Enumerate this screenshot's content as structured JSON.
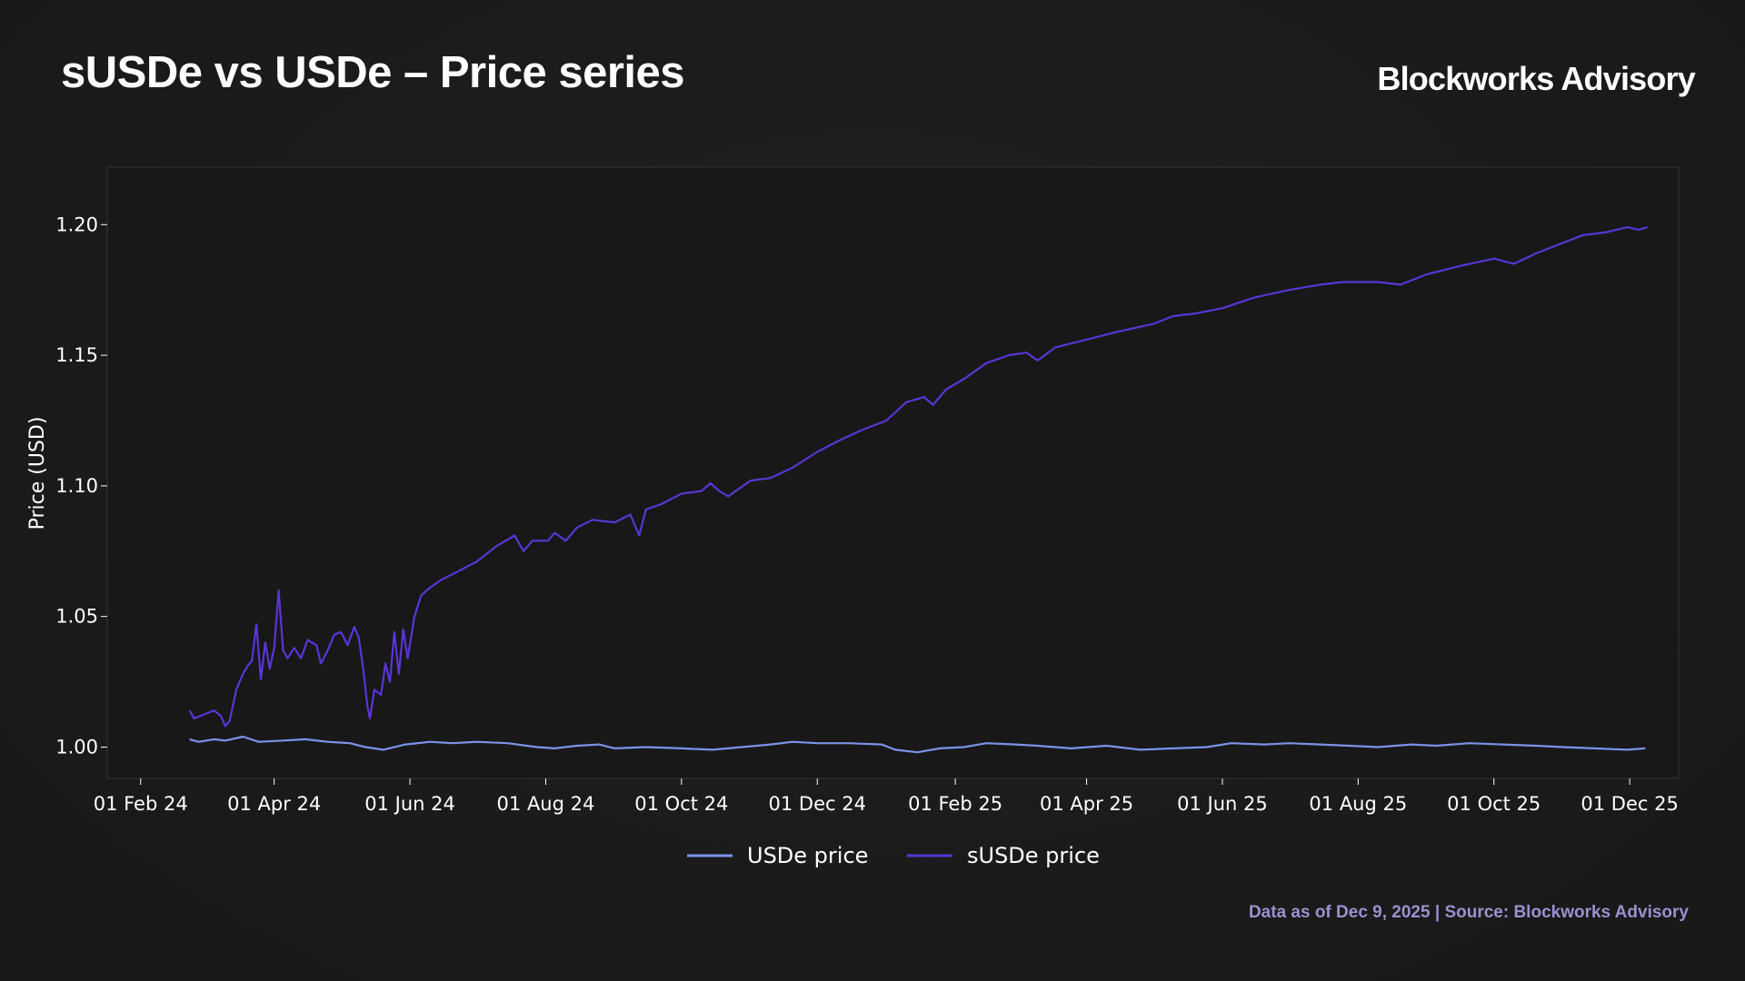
{
  "header": {
    "title": "sUSDe vs USDe – Price series",
    "brand": "Blockworks Advisory"
  },
  "footer": {
    "source": "Data as of Dec 9, 2025 | Source: Blockworks Advisory"
  },
  "chart_data": {
    "type": "line",
    "title": "sUSDe vs USDe – Price series",
    "xlabel": "",
    "ylabel": "Price (USD)",
    "x_range": [
      "2024-01-17",
      "2025-12-23"
    ],
    "ylim": [
      0.988,
      1.222
    ],
    "x_ticks": [
      "2024-02-01",
      "2024-04-01",
      "2024-06-01",
      "2024-08-01",
      "2024-10-01",
      "2024-12-01",
      "2025-02-01",
      "2025-04-01",
      "2025-06-01",
      "2025-08-01",
      "2025-10-01",
      "2025-12-01"
    ],
    "x_tick_labels": [
      "01 Feb 24",
      "01 Apr 24",
      "01 Jun 24",
      "01 Aug 24",
      "01 Oct 24",
      "01 Dec 24",
      "01 Feb 25",
      "01 Apr 25",
      "01 Jun 25",
      "01 Aug 25",
      "01 Oct 25",
      "01 Dec 25"
    ],
    "y_ticks": [
      1.0,
      1.05,
      1.1,
      1.15,
      1.2
    ],
    "y_tick_labels": [
      "1.00",
      "1.05",
      "1.10",
      "1.15",
      "1.20"
    ],
    "grid": false,
    "legend_position": "bottom-center",
    "series": [
      {
        "name": "USDe price",
        "color": "#7b93e8",
        "points": [
          [
            "2024-02-23",
            1.003
          ],
          [
            "2024-02-27",
            1.002
          ],
          [
            "2024-03-05",
            1.003
          ],
          [
            "2024-03-10",
            1.0025
          ],
          [
            "2024-03-18",
            1.004
          ],
          [
            "2024-03-25",
            1.002
          ],
          [
            "2024-04-05",
            1.0025
          ],
          [
            "2024-04-15",
            1.003
          ],
          [
            "2024-04-25",
            1.002
          ],
          [
            "2024-05-05",
            1.0015
          ],
          [
            "2024-05-12",
            1.0
          ],
          [
            "2024-05-20",
            0.999
          ],
          [
            "2024-05-30",
            1.001
          ],
          [
            "2024-06-10",
            1.002
          ],
          [
            "2024-06-20",
            1.0015
          ],
          [
            "2024-07-01",
            1.002
          ],
          [
            "2024-07-15",
            1.0015
          ],
          [
            "2024-07-28",
            1.0
          ],
          [
            "2024-08-05",
            0.9995
          ],
          [
            "2024-08-15",
            1.0005
          ],
          [
            "2024-08-25",
            1.001
          ],
          [
            "2024-09-01",
            0.9995
          ],
          [
            "2024-09-15",
            1.0
          ],
          [
            "2024-10-01",
            0.9995
          ],
          [
            "2024-10-15",
            0.999
          ],
          [
            "2024-10-28",
            1.0
          ],
          [
            "2024-11-10",
            1.001
          ],
          [
            "2024-11-20",
            1.002
          ],
          [
            "2024-12-01",
            1.0015
          ],
          [
            "2024-12-15",
            1.0015
          ],
          [
            "2024-12-30",
            1.001
          ],
          [
            "2025-01-05",
            0.999
          ],
          [
            "2025-01-15",
            0.998
          ],
          [
            "2025-01-25",
            0.9995
          ],
          [
            "2025-02-05",
            1.0
          ],
          [
            "2025-02-15",
            1.0015
          ],
          [
            "2025-02-28",
            1.001
          ],
          [
            "2025-03-10",
            1.0005
          ],
          [
            "2025-03-25",
            0.9995
          ],
          [
            "2025-04-10",
            1.0005
          ],
          [
            "2025-04-25",
            0.999
          ],
          [
            "2025-05-10",
            0.9995
          ],
          [
            "2025-05-25",
            1.0
          ],
          [
            "2025-06-05",
            1.0015
          ],
          [
            "2025-06-20",
            1.001
          ],
          [
            "2025-07-01",
            1.0015
          ],
          [
            "2025-07-15",
            1.001
          ],
          [
            "2025-07-28",
            1.0005
          ],
          [
            "2025-08-10",
            1.0
          ],
          [
            "2025-08-25",
            1.001
          ],
          [
            "2025-09-05",
            1.0005
          ],
          [
            "2025-09-20",
            1.0015
          ],
          [
            "2025-10-05",
            1.001
          ],
          [
            "2025-10-20",
            1.0005
          ],
          [
            "2025-11-01",
            1.0
          ],
          [
            "2025-11-15",
            0.9995
          ],
          [
            "2025-11-30",
            0.999
          ],
          [
            "2025-12-08",
            0.9995
          ]
        ]
      },
      {
        "name": "sUSDe price",
        "color": "#5a35d6",
        "points": [
          [
            "2024-02-23",
            1.014
          ],
          [
            "2024-02-25",
            1.011
          ],
          [
            "2024-02-28",
            1.012
          ],
          [
            "2024-03-02",
            1.013
          ],
          [
            "2024-03-05",
            1.014
          ],
          [
            "2024-03-08",
            1.012
          ],
          [
            "2024-03-10",
            1.008
          ],
          [
            "2024-03-12",
            1.01
          ],
          [
            "2024-03-15",
            1.022
          ],
          [
            "2024-03-18",
            1.028
          ],
          [
            "2024-03-20",
            1.031
          ],
          [
            "2024-03-22",
            1.033
          ],
          [
            "2024-03-24",
            1.047
          ],
          [
            "2024-03-26",
            1.026
          ],
          [
            "2024-03-28",
            1.04
          ],
          [
            "2024-03-30",
            1.03
          ],
          [
            "2024-04-01",
            1.038
          ],
          [
            "2024-04-03",
            1.06
          ],
          [
            "2024-04-05",
            1.037
          ],
          [
            "2024-04-07",
            1.034
          ],
          [
            "2024-04-10",
            1.038
          ],
          [
            "2024-04-13",
            1.034
          ],
          [
            "2024-04-16",
            1.041
          ],
          [
            "2024-04-20",
            1.039
          ],
          [
            "2024-04-22",
            1.032
          ],
          [
            "2024-04-25",
            1.037
          ],
          [
            "2024-04-28",
            1.043
          ],
          [
            "2024-05-01",
            1.044
          ],
          [
            "2024-05-04",
            1.039
          ],
          [
            "2024-05-07",
            1.046
          ],
          [
            "2024-05-09",
            1.042
          ],
          [
            "2024-05-11",
            1.03
          ],
          [
            "2024-05-13",
            1.015
          ],
          [
            "2024-05-14",
            1.011
          ],
          [
            "2024-05-16",
            1.022
          ],
          [
            "2024-05-19",
            1.02
          ],
          [
            "2024-05-21",
            1.032
          ],
          [
            "2024-05-23",
            1.025
          ],
          [
            "2024-05-25",
            1.044
          ],
          [
            "2024-05-27",
            1.028
          ],
          [
            "2024-05-29",
            1.045
          ],
          [
            "2024-05-31",
            1.034
          ],
          [
            "2024-06-03",
            1.05
          ],
          [
            "2024-06-06",
            1.058
          ],
          [
            "2024-06-10",
            1.061
          ],
          [
            "2024-06-15",
            1.064
          ],
          [
            "2024-06-22",
            1.067
          ],
          [
            "2024-07-01",
            1.071
          ],
          [
            "2024-07-10",
            1.077
          ],
          [
            "2024-07-18",
            1.081
          ],
          [
            "2024-07-22",
            1.075
          ],
          [
            "2024-07-26",
            1.079
          ],
          [
            "2024-08-02",
            1.079
          ],
          [
            "2024-08-05",
            1.082
          ],
          [
            "2024-08-10",
            1.079
          ],
          [
            "2024-08-15",
            1.084
          ],
          [
            "2024-08-22",
            1.087
          ],
          [
            "2024-09-01",
            1.086
          ],
          [
            "2024-09-08",
            1.089
          ],
          [
            "2024-09-12",
            1.081
          ],
          [
            "2024-09-15",
            1.091
          ],
          [
            "2024-09-22",
            1.093
          ],
          [
            "2024-10-01",
            1.097
          ],
          [
            "2024-10-10",
            1.098
          ],
          [
            "2024-10-14",
            1.101
          ],
          [
            "2024-10-18",
            1.098
          ],
          [
            "2024-10-22",
            1.096
          ],
          [
            "2024-11-01",
            1.102
          ],
          [
            "2024-11-10",
            1.103
          ],
          [
            "2024-11-20",
            1.107
          ],
          [
            "2024-12-01",
            1.113
          ],
          [
            "2024-12-10",
            1.117
          ],
          [
            "2024-12-20",
            1.121
          ],
          [
            "2025-01-01",
            1.125
          ],
          [
            "2025-01-10",
            1.132
          ],
          [
            "2025-01-18",
            1.134
          ],
          [
            "2025-01-22",
            1.131
          ],
          [
            "2025-01-28",
            1.137
          ],
          [
            "2025-02-05",
            1.141
          ],
          [
            "2025-02-15",
            1.147
          ],
          [
            "2025-02-25",
            1.15
          ],
          [
            "2025-03-05",
            1.151
          ],
          [
            "2025-03-10",
            1.148
          ],
          [
            "2025-03-18",
            1.153
          ],
          [
            "2025-04-01",
            1.156
          ],
          [
            "2025-04-15",
            1.159
          ],
          [
            "2025-05-01",
            1.162
          ],
          [
            "2025-05-10",
            1.165
          ],
          [
            "2025-05-20",
            1.166
          ],
          [
            "2025-06-01",
            1.168
          ],
          [
            "2025-06-15",
            1.172
          ],
          [
            "2025-07-01",
            1.175
          ],
          [
            "2025-07-15",
            1.177
          ],
          [
            "2025-07-25",
            1.178
          ],
          [
            "2025-08-10",
            1.178
          ],
          [
            "2025-08-20",
            1.177
          ],
          [
            "2025-09-01",
            1.181
          ],
          [
            "2025-09-15",
            1.184
          ],
          [
            "2025-10-01",
            1.187
          ],
          [
            "2025-10-10",
            1.185
          ],
          [
            "2025-10-20",
            1.189
          ],
          [
            "2025-11-01",
            1.193
          ],
          [
            "2025-11-10",
            1.196
          ],
          [
            "2025-11-20",
            1.197
          ],
          [
            "2025-11-30",
            1.199
          ],
          [
            "2025-12-05",
            1.198
          ],
          [
            "2025-12-09",
            1.199
          ]
        ]
      }
    ]
  }
}
